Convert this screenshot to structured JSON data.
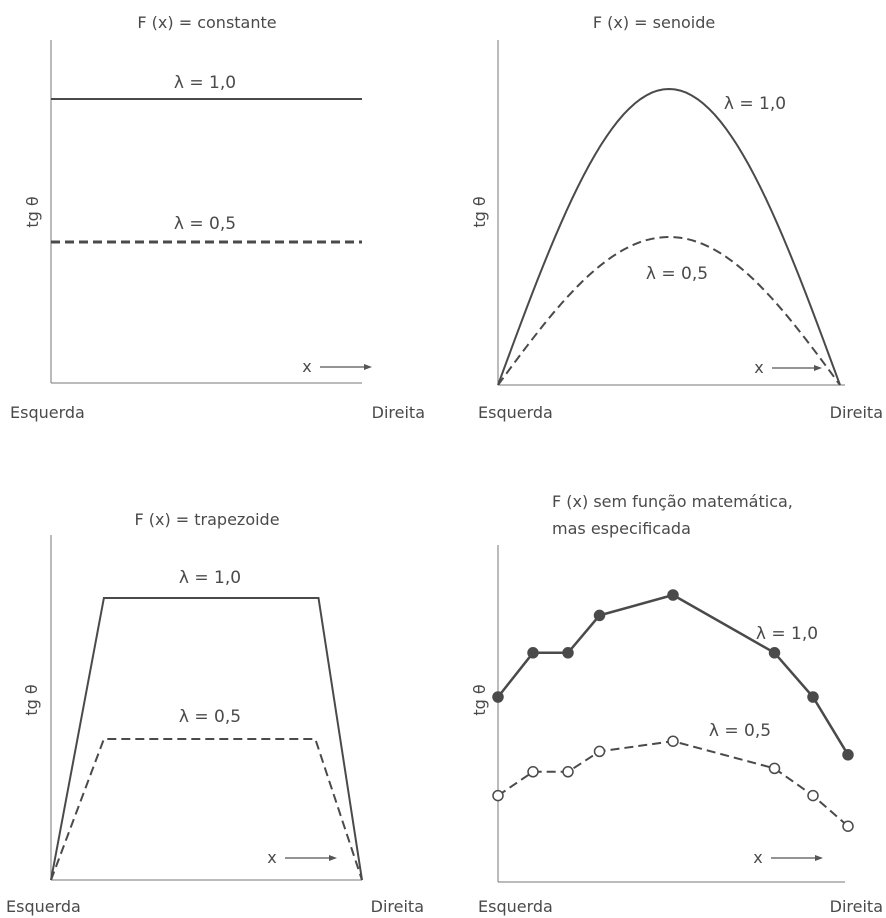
{
  "chart_data": [
    {
      "type": "line",
      "title": "F (x) = constante",
      "ylabel": "tg θ",
      "axis_arrow_label": "x",
      "xtick_left": "Esquerda",
      "xtick_right": "Direita",
      "x": [
        0,
        1
      ],
      "ylim": [
        0,
        1
      ],
      "series": [
        {
          "name": "λ = 1,0",
          "style": "solid",
          "values": [
            0.95,
            0.95
          ]
        },
        {
          "name": "λ = 0,5",
          "style": "dashed",
          "values": [
            0.47,
            0.47
          ]
        }
      ]
    },
    {
      "type": "line",
      "title": "F (x) = senoide",
      "ylabel": "tg θ",
      "axis_arrow_label": "x",
      "xtick_left": "Esquerda",
      "xtick_right": "Direita",
      "x": [
        0,
        1
      ],
      "ylim": [
        0,
        1
      ],
      "curve": "sine",
      "series": [
        {
          "name": "λ = 1,0",
          "style": "solid",
          "peak": 1.0
        },
        {
          "name": "λ = 0,5",
          "style": "dashed",
          "peak": 0.5
        }
      ]
    },
    {
      "type": "line",
      "title": "F (x) = trapezoide",
      "ylabel": "tg θ",
      "axis_arrow_label": "x",
      "xtick_left": "Esquerda",
      "xtick_right": "Direita",
      "ylim": [
        0,
        1
      ],
      "series": [
        {
          "name": "λ = 1,0",
          "style": "solid",
          "x": [
            0,
            0.17,
            0.86,
            1.0
          ],
          "values": [
            0,
            1.0,
            1.0,
            0
          ]
        },
        {
          "name": "λ = 0,5",
          "style": "dashed",
          "x": [
            0,
            0.17,
            0.85,
            1.0
          ],
          "values": [
            0,
            0.5,
            0.5,
            0
          ]
        }
      ]
    },
    {
      "type": "line",
      "title": "F (x) sem função matemática,\nmas especificada",
      "ylabel": "tg θ",
      "axis_arrow_label": "x",
      "xtick_left": "Esquerda",
      "xtick_right": "Direita",
      "x": [
        0,
        0.1,
        0.2,
        0.29,
        0.5,
        0.79,
        0.9,
        1.0
      ],
      "ylim": [
        0,
        1
      ],
      "series": [
        {
          "name": "λ = 1,0",
          "style": "solid",
          "marker": "filled",
          "values": [
            0.55,
            0.68,
            0.68,
            0.79,
            0.85,
            0.68,
            0.55,
            0.38
          ]
        },
        {
          "name": "λ = 0,5",
          "style": "dashed",
          "marker": "hollow",
          "values": [
            0.26,
            0.33,
            0.33,
            0.39,
            0.42,
            0.34,
            0.26,
            0.17
          ]
        }
      ]
    }
  ]
}
